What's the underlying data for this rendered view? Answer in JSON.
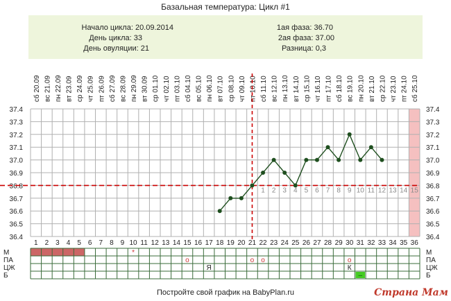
{
  "title": "Базальная температура: Цикл #1",
  "info": {
    "cycle_start": "Начало цикла: 20.09.2014",
    "cycle_day": "День цикла: 33",
    "ovulation_day": "День овуляции: 21",
    "phase1": "1ая фаза: 36.70",
    "phase2": "2ая фаза: 37.00",
    "difference": "Разница: 0,3"
  },
  "footer": "Постройте свой график на BabyPlan.ru",
  "watermark": "Страна Мам",
  "colors": {
    "line": "#1f4f1f",
    "coverline": "#cc0000",
    "menstruation": "#cc6666",
    "future_band": "#f5c0c0",
    "info_bg": "#eef5dc",
    "grid": "#b0b0b0",
    "watermark": "#c0392b"
  },
  "chart_data": {
    "type": "line",
    "title": "Базальная температура: Цикл #1",
    "dates": [
      "20.09",
      "21.09",
      "22.09",
      "23.09",
      "24.09",
      "25.09",
      "26.09",
      "27.09",
      "28.09",
      "29.09",
      "30.09",
      "01.10",
      "02.10",
      "03.10",
      "04.10",
      "05.10",
      "06.10",
      "07.10",
      "08.10",
      "09.10",
      "10.10",
      "11.10",
      "12.10",
      "13.10",
      "14.10",
      "15.10",
      "16.10",
      "17.10",
      "18.10",
      "19.10",
      "20.10",
      "21.10",
      "22.10",
      "23.10",
      "24.10",
      "25.10"
    ],
    "weekdays": [
      "сб",
      "вс",
      "пн",
      "вт",
      "ср",
      "чт",
      "пт",
      "сб",
      "вс",
      "пн",
      "вт",
      "ср",
      "чт",
      "пт",
      "сб",
      "вс",
      "пн",
      "вт",
      "ср",
      "чт",
      "пт",
      "сб",
      "вс",
      "пн",
      "вт",
      "ср",
      "чт",
      "пт",
      "сб",
      "вс",
      "пн",
      "вт",
      "ср",
      "чт",
      "пт",
      "сб"
    ],
    "cycle_days": [
      "1",
      "2",
      "3",
      "4",
      "5",
      "6",
      "7",
      "8",
      "9",
      "10",
      "11",
      "12",
      "13",
      "14",
      "15",
      "16",
      "17",
      "18",
      "19",
      "20",
      "21",
      "22",
      "23",
      "24",
      "25",
      "26",
      "27",
      "28",
      "29",
      "30",
      "31",
      "32",
      "33",
      "34",
      "35",
      "36"
    ],
    "y_ticks": [
      "37.4",
      "37.3",
      "37.2",
      "37.1",
      "37.0",
      "36.9",
      "36.8",
      "36.7",
      "36.6",
      "36.5",
      "36.4"
    ],
    "ylim": [
      36.4,
      37.4
    ],
    "series": [
      {
        "x": [
          18,
          19,
          20,
          21,
          22,
          23,
          24,
          25,
          26,
          27,
          28,
          29,
          30,
          31,
          32,
          33
        ],
        "y": [
          36.6,
          36.7,
          36.7,
          36.8,
          36.9,
          37.0,
          36.9,
          36.8,
          37.0,
          37.0,
          37.1,
          37.0,
          37.2,
          37.0,
          37.1,
          37.0
        ]
      }
    ],
    "coverline": 36.8,
    "ovulation_day": 21,
    "phase2_numbers": [
      "1",
      "2",
      "3",
      "4",
      "5",
      "6",
      "7",
      "8",
      "9",
      "10",
      "11",
      "12",
      "13",
      "14",
      "15"
    ],
    "rows": {
      "labels": [
        "М",
        "ПА",
        "ЦЖ",
        "Б"
      ],
      "menstruation_days": [
        1,
        2,
        3,
        4,
        5
      ],
      "m_marks": [
        {
          "day": 10,
          "mark": "*"
        }
      ],
      "pa_marks": [
        {
          "day": 15,
          "mark": "о"
        },
        {
          "day": 21,
          "mark": "о"
        },
        {
          "day": 22,
          "mark": "о"
        },
        {
          "day": 30,
          "mark": "о"
        }
      ],
      "cj_marks": [
        {
          "day": 17,
          "mark": "Я"
        },
        {
          "day": 30,
          "mark": "К"
        }
      ],
      "b_marks": [
        {
          "day": 31,
          "mark": "–"
        }
      ]
    }
  }
}
